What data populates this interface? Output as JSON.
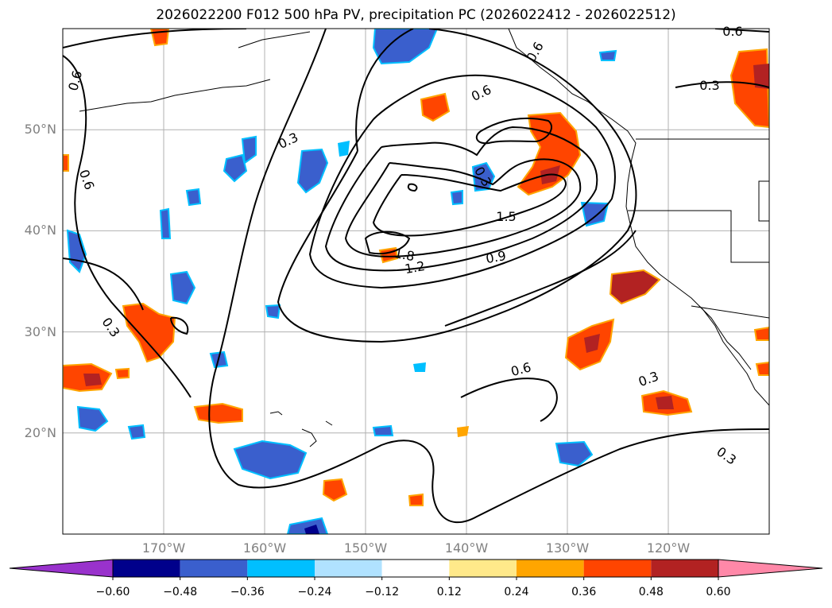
{
  "title": "2026022200 F012 500 hPa PV, precipitation PC (2026022412 - 2026022512)",
  "lat_labels": [
    {
      "text": "50°N",
      "lat": 50
    },
    {
      "text": "40°N",
      "lat": 40
    },
    {
      "text": "30°N",
      "lat": 30
    },
    {
      "text": "20°N",
      "lat": 20
    }
  ],
  "lon_labels": [
    {
      "text": "170°W",
      "lon": -170
    },
    {
      "text": "160°W",
      "lon": -160
    },
    {
      "text": "150°W",
      "lon": -150
    },
    {
      "text": "140°W",
      "lon": -140
    },
    {
      "text": "130°W",
      "lon": -130
    },
    {
      "text": "120°W",
      "lon": -120
    }
  ],
  "map_extent": {
    "lon_min": -180,
    "lon_max": -110,
    "lat_min": 10,
    "lat_max": 60
  },
  "contour_labels": [
    "0.6",
    "0.6",
    "0.6",
    "0.6",
    "0.3",
    "0.3",
    "0.3",
    "0.3",
    "0.3",
    "1.5",
    "1.8",
    "1.2",
    "0.9",
    "0.6",
    "0.6",
    "0.3"
  ],
  "colorbar": {
    "ticks": [
      "−0.60",
      "−0.48",
      "−0.36",
      "−0.24",
      "−0.12",
      "0.12",
      "0.24",
      "0.36",
      "0.48",
      "0.60"
    ],
    "colors": [
      "#9932cc",
      "#00008b",
      "#3a5fcd",
      "#00bfff",
      "#b0e2ff",
      "#ffffff",
      "#ffe98a",
      "#ffa500",
      "#ff4500",
      "#b22222",
      "#ff88a8"
    ]
  },
  "shading_colors": {
    "neg_light": "#00bfff",
    "neg_mid": "#3a5fcd",
    "neg_dark": "#00008b",
    "pos_light": "#ffa500",
    "pos_mid": "#ff4500",
    "pos_dark": "#b22222"
  }
}
